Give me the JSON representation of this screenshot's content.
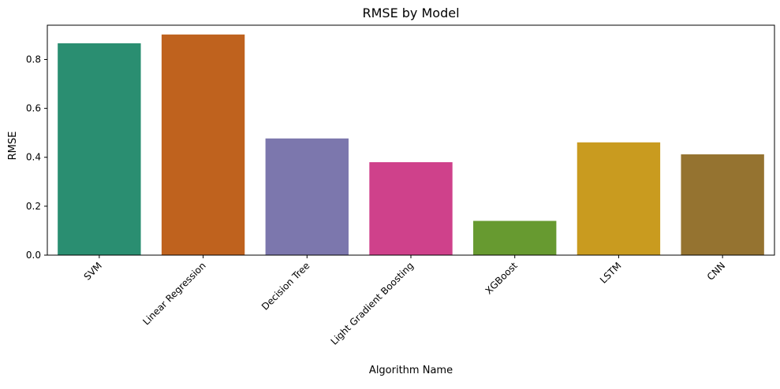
{
  "chart_data": {
    "type": "bar",
    "title": "RMSE by Model",
    "xlabel": "Algorithm Name",
    "ylabel": "RMSE",
    "categories": [
      "SVM",
      "Linear Regression",
      "Decision Tree",
      "Light Gradient Boosting",
      "XGBoost",
      "LSTM",
      "CNN"
    ],
    "values": [
      0.866,
      0.902,
      0.477,
      0.38,
      0.14,
      0.461,
      0.412
    ],
    "colors": [
      "#2a8e71",
      "#bf621e",
      "#7c77ad",
      "#cf418b",
      "#679a30",
      "#c99b1f",
      "#957330"
    ],
    "ylim": [
      0,
      0.94
    ],
    "yticks": [
      0.0,
      0.2,
      0.4,
      0.6,
      0.8
    ],
    "ytick_labels": [
      "0.0",
      "0.2",
      "0.4",
      "0.6",
      "0.8"
    ],
    "grid": false,
    "legend": "none"
  }
}
